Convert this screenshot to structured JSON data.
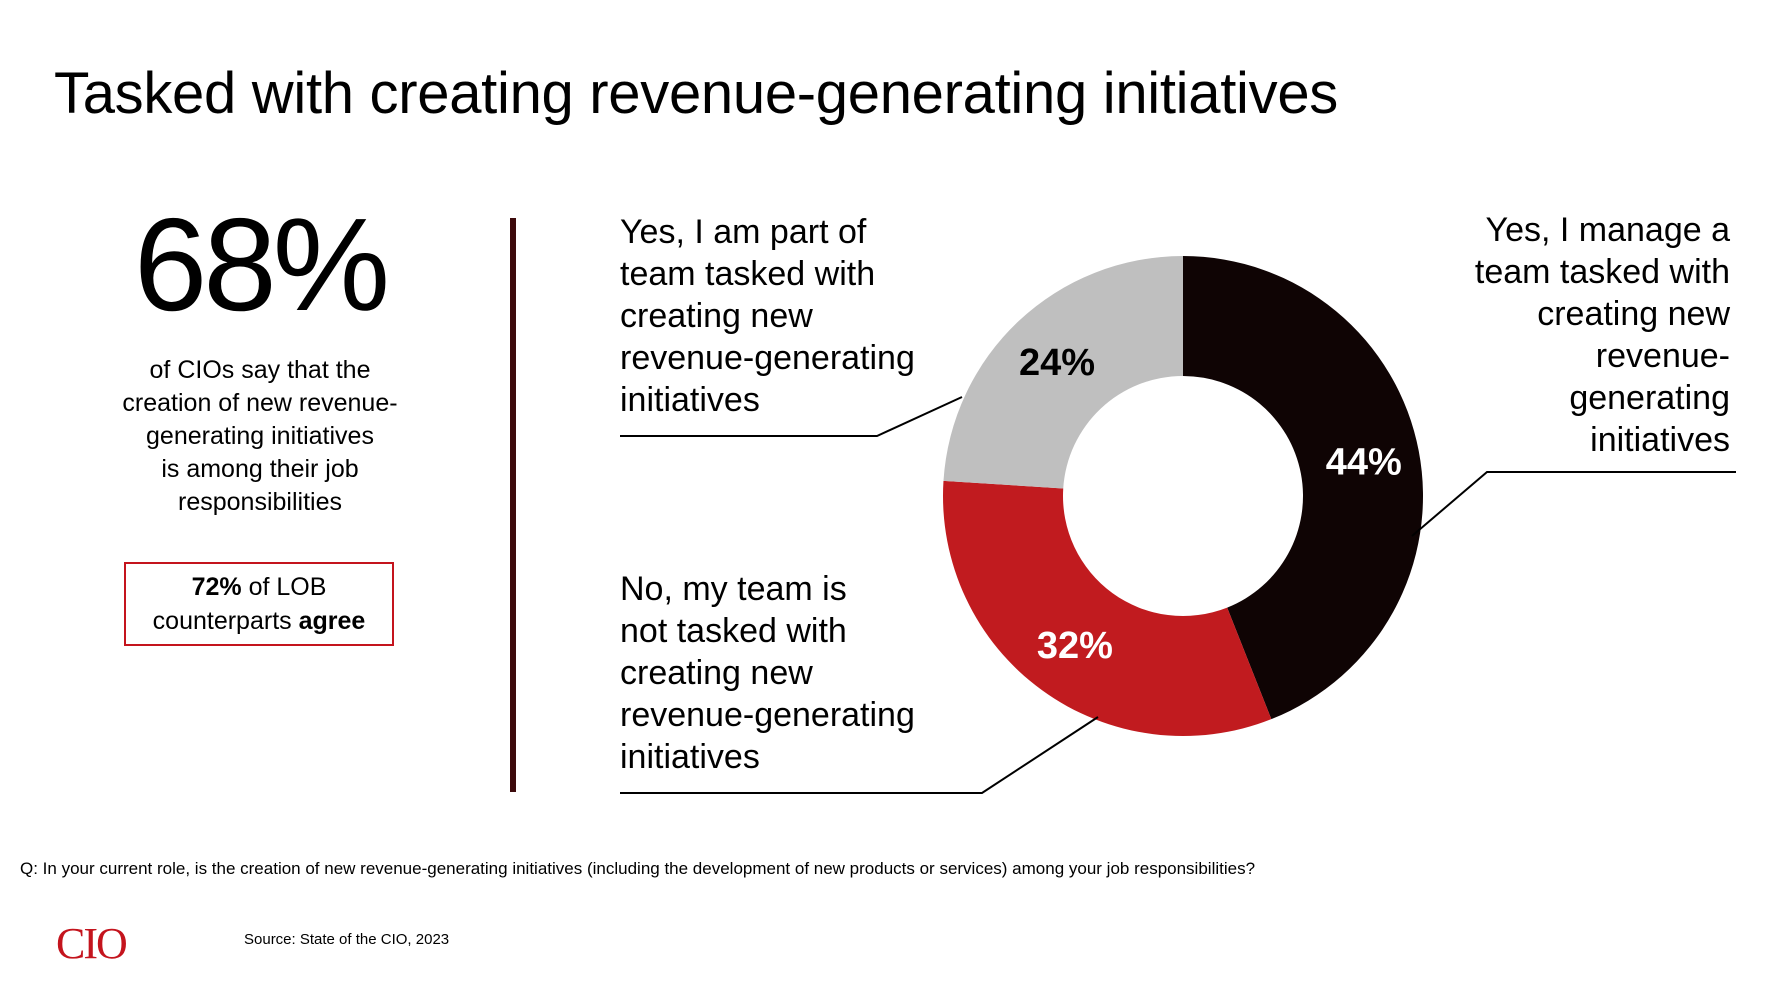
{
  "title": "Tasked with creating revenue-generating initiatives",
  "headline_stat": {
    "value": "68%",
    "description": "of CIOs say that the\ncreation of new revenue-\ngenerating initiatives\nis among their job\nresponsibilities"
  },
  "lob_box": {
    "value": "72%",
    "text1": " of LOB",
    "text2": "counterparts ",
    "emphasis": "agree"
  },
  "colors": {
    "manage": "#0f0404",
    "not_tasked": "#c11b1f",
    "part_of": "#bfbfbf",
    "accent": "#c4141d",
    "divider": "#3d0a0c"
  },
  "chart_data": {
    "type": "pie",
    "variant": "donut",
    "slices": [
      {
        "name": "Yes, I manage a team tasked with creating new revenue-generating initiatives",
        "value": 44,
        "label": "44%",
        "color": "#0f0404",
        "label_color": "#ffffff"
      },
      {
        "name": "No, my team is not tasked with creating new revenue-generating initiatives",
        "value": 32,
        "label": "32%",
        "color": "#c11b1f",
        "label_color": "#ffffff"
      },
      {
        "name": "Yes, I am part of team tasked with creating new revenue-generating initiatives",
        "value": 24,
        "label": "24%",
        "color": "#bfbfbf",
        "label_color": "#000000"
      }
    ],
    "start": "12 o'clock",
    "direction": "clockwise"
  },
  "labels": {
    "yes_part": "Yes, I am part of\nteam tasked with\ncreating new\nrevenue-generating\ninitiatives",
    "no": "No, my team is\nnot tasked with\ncreating new\nrevenue-generating\ninitiatives",
    "yes_manage": "Yes, I manage a\nteam tasked with\ncreating new\nrevenue-\ngenerating\ninitiatives"
  },
  "question": "Q: In your current role, is the creation of new revenue-generating initiatives (including the development of new products or services) among your job responsibilities?",
  "logo": "CIO",
  "source": "Source: State of the CIO, 2023"
}
